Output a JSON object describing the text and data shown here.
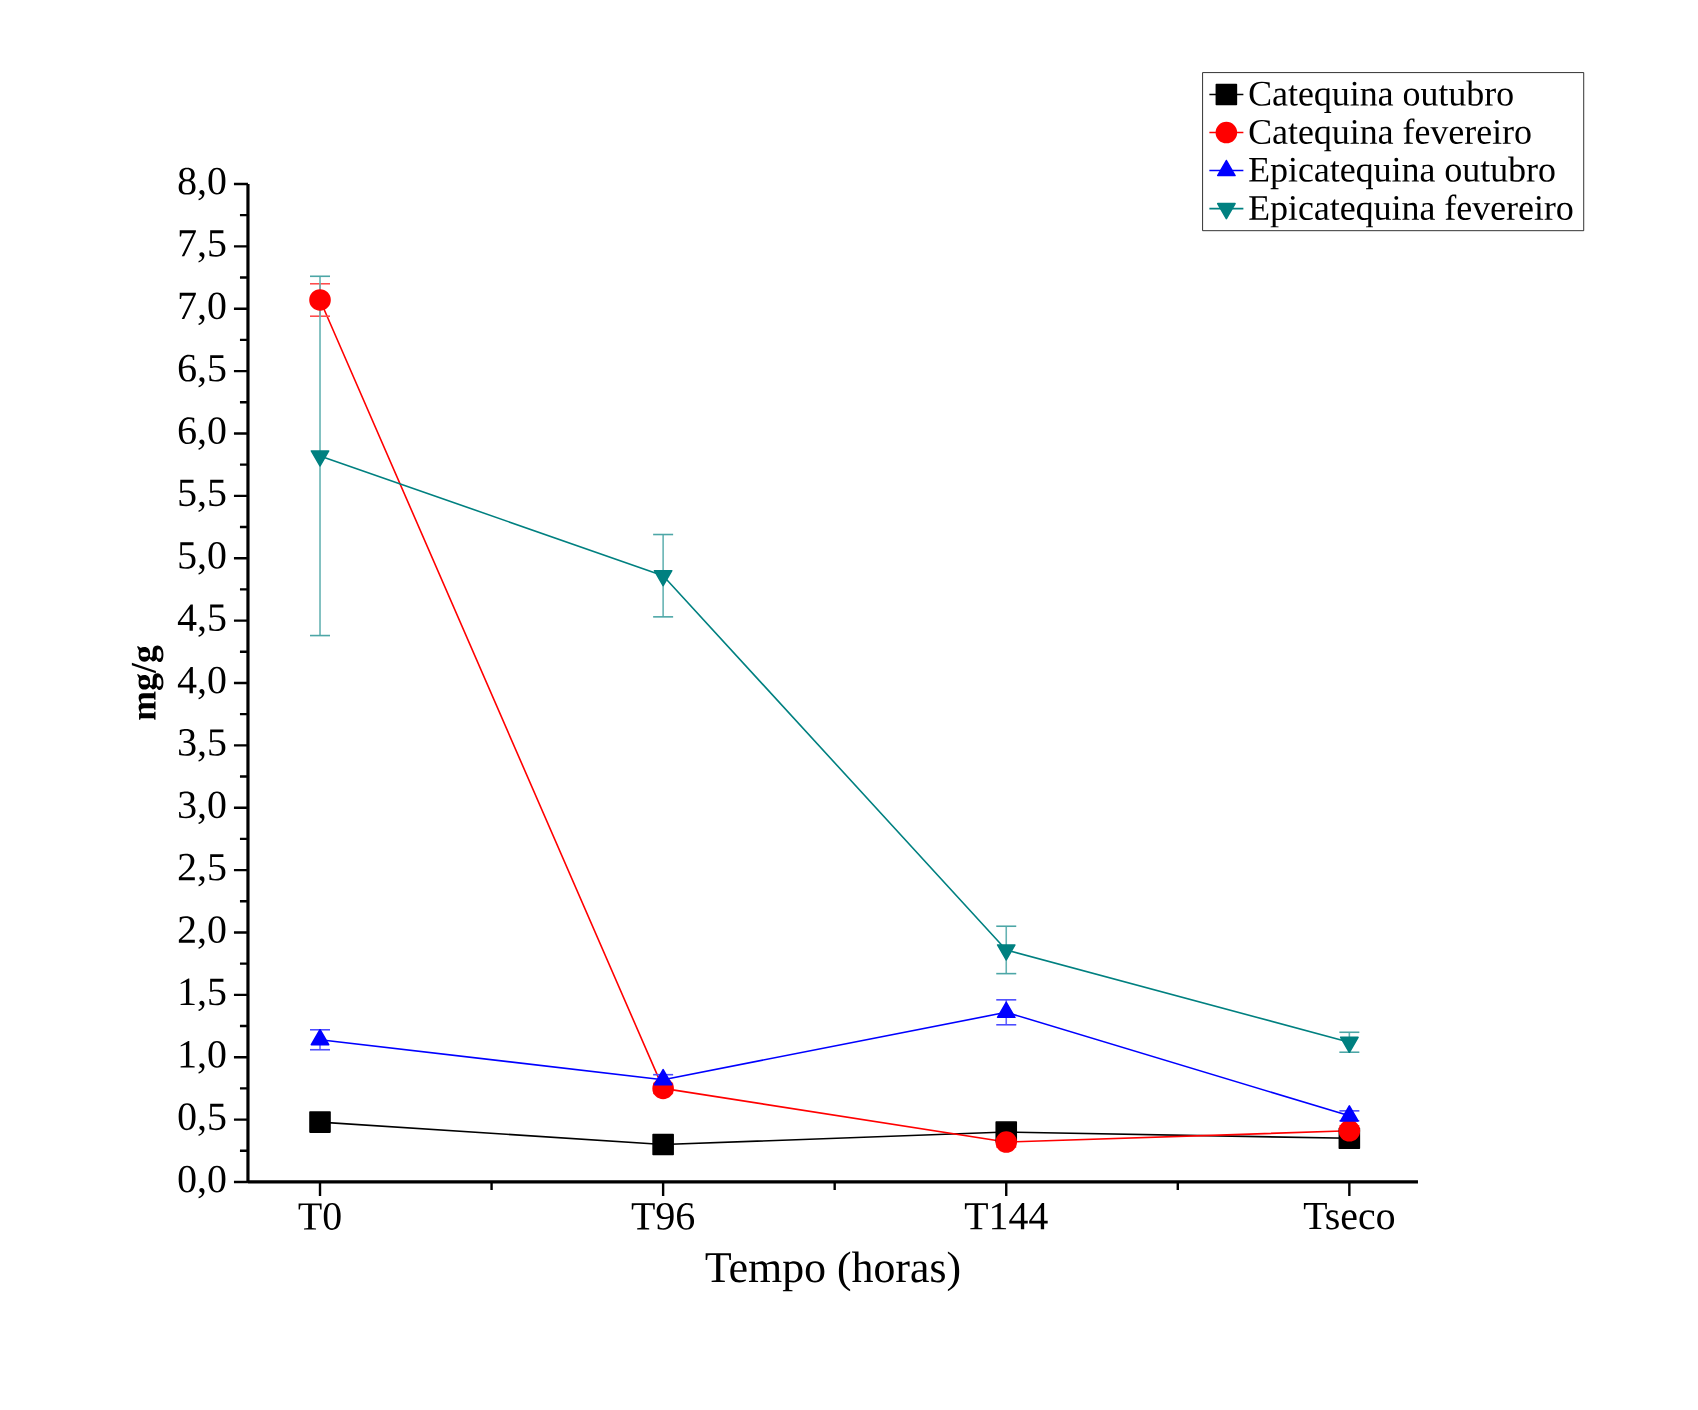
{
  "chart_data": {
    "type": "line",
    "xlabel": "Tempo (horas)",
    "ylabel": "mg/g",
    "categories": [
      "T0",
      "T96",
      "T144",
      "Tseco"
    ],
    "ylim": [
      0,
      8
    ],
    "yticks": [
      {
        "value": 0,
        "label": "0,0"
      },
      {
        "value": 0.5,
        "label": "0,5"
      },
      {
        "value": 1,
        "label": "1,0"
      },
      {
        "value": 1.5,
        "label": "1,5"
      },
      {
        "value": 2,
        "label": "2,0"
      },
      {
        "value": 2.5,
        "label": "2,5"
      },
      {
        "value": 3,
        "label": "3,0"
      },
      {
        "value": 3.5,
        "label": "3,5"
      },
      {
        "value": 4,
        "label": "4,0"
      },
      {
        "value": 4.5,
        "label": "4,5"
      },
      {
        "value": 5,
        "label": "5,0"
      },
      {
        "value": 5.5,
        "label": "5,5"
      },
      {
        "value": 6,
        "label": "6,0"
      },
      {
        "value": 6.5,
        "label": "6,5"
      },
      {
        "value": 7,
        "label": "7,0"
      },
      {
        "value": 7.5,
        "label": "7,5"
      },
      {
        "value": 8,
        "label": "8,0"
      }
    ],
    "legend": "top right",
    "grid": false,
    "series": [
      {
        "name": "Catequina outubro",
        "color": "#000000",
        "marker": "square",
        "values": [
          0.48,
          0.3,
          0.4,
          0.35
        ],
        "errors": [
          0.04,
          0.03,
          0.04,
          0.03
        ]
      },
      {
        "name": "Catequina fevereiro",
        "color": "#ff0000",
        "marker": "circle",
        "values": [
          7.07,
          0.75,
          0.32,
          0.41
        ],
        "errors": [
          0.13,
          0.04,
          0.04,
          0.04
        ]
      },
      {
        "name": "Epicatequina outubro",
        "color": "#0000ff",
        "marker": "triangle",
        "values": [
          1.14,
          0.82,
          1.36,
          0.53
        ],
        "errors": [
          0.08,
          0.04,
          0.1,
          0.04
        ]
      },
      {
        "name": "Epicatequina fevereiro",
        "color": "#008080",
        "marker": "triangle down",
        "values": [
          5.82,
          4.86,
          1.86,
          1.12
        ],
        "errors": [
          1.44,
          0.33,
          0.19,
          0.08
        ]
      }
    ]
  }
}
